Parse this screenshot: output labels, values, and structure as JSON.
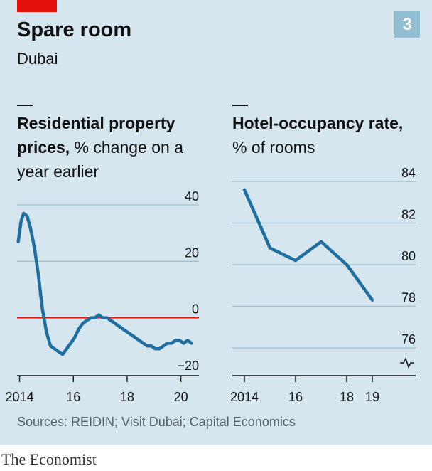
{
  "header": {
    "title": "Spare room",
    "subtitle": "Dubai",
    "badge": "3"
  },
  "colors": {
    "line": "#1f6ea0",
    "zero": "#e3120b",
    "grid": "#9fbfd0",
    "panel": "#d5e6ee"
  },
  "chart_data": [
    {
      "type": "line",
      "title_bold": "Residential property prices,",
      "title_rest": "% change on a year earlier",
      "ylim": [
        -20,
        40
      ],
      "yticks": [
        40,
        20,
        0,
        -20
      ],
      "xlim": [
        2013.8,
        2021.2
      ],
      "xticks": [
        {
          "value": 2014,
          "label": "2014"
        },
        {
          "value": 2016,
          "label": "16"
        },
        {
          "value": 2018,
          "label": "18"
        },
        {
          "value": 2020,
          "label": "20"
        }
      ],
      "series": [
        {
          "x": [
            2013.95,
            2014.05,
            2014.15,
            2014.28,
            2014.4,
            2014.55,
            2014.7,
            2014.85,
            2015.0,
            2015.15,
            2015.3,
            2015.45,
            2015.6,
            2015.75,
            2015.9,
            2016.05,
            2016.2,
            2016.35,
            2016.5,
            2016.65,
            2016.8,
            2016.95,
            2017.1,
            2017.25,
            2017.4,
            2017.55,
            2017.7,
            2017.85,
            2018.0,
            2018.15,
            2018.3,
            2018.45,
            2018.6,
            2018.75,
            2018.9,
            2019.05,
            2019.2,
            2019.35,
            2019.5,
            2019.65,
            2019.8,
            2019.95,
            2020.1,
            2020.25,
            2020.4
          ],
          "y": [
            27,
            34,
            37,
            36,
            32,
            25,
            15,
            3,
            -5,
            -10,
            -11,
            -12,
            -13,
            -11,
            -9,
            -7,
            -4,
            -2,
            -1,
            0,
            0,
            1,
            0,
            0,
            -1,
            -2,
            -3,
            -4,
            -5,
            -6,
            -7,
            -8,
            -9,
            -10,
            -10,
            -11,
            -11,
            -10,
            -9,
            -9,
            -8,
            -8,
            -9,
            -8,
            -9
          ]
        }
      ]
    },
    {
      "type": "line",
      "title_bold": "Hotel-occupancy rate,",
      "title_rest": "% of rooms",
      "ylim": [
        76,
        84
      ],
      "yticks": [
        84,
        82,
        80,
        78,
        76
      ],
      "xlim": [
        2013.5,
        2019.5
      ],
      "xticks": [
        {
          "value": 2014,
          "label": "2014"
        },
        {
          "value": 2016,
          "label": "16"
        },
        {
          "value": 2018,
          "label": "18"
        },
        {
          "value": 2019,
          "label": "19"
        }
      ],
      "series": [
        {
          "x": [
            2014,
            2015,
            2016,
            2017,
            2018,
            2019
          ],
          "y": [
            83.6,
            80.8,
            80.2,
            81.1,
            80.0,
            78.3
          ]
        }
      ]
    }
  ],
  "source": "Sources: REIDIN; Visit Dubai; Capital Economics",
  "brand": "The Economist"
}
